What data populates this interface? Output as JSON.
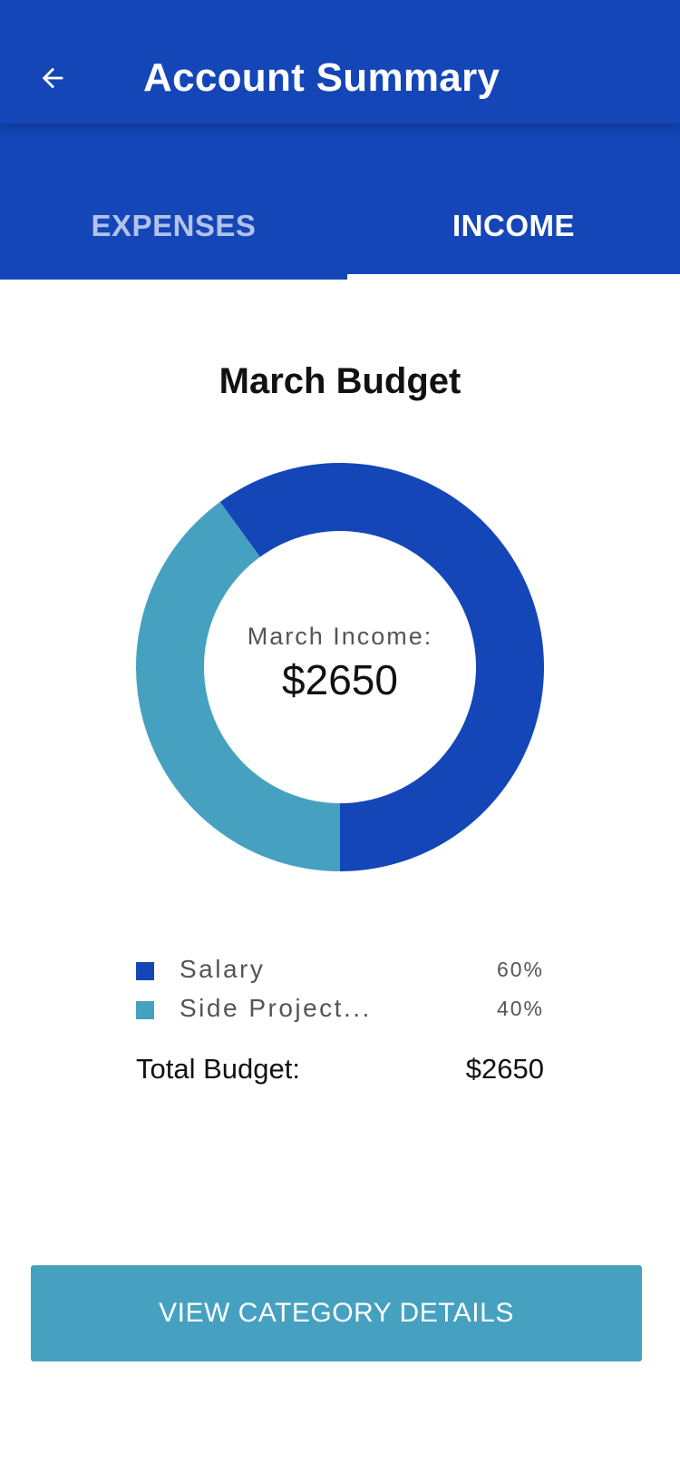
{
  "header": {
    "title": "Account Summary",
    "back_icon": "arrow-back-icon"
  },
  "tabs": [
    {
      "label": "EXPENSES",
      "selected": false
    },
    {
      "label": "INCOME",
      "selected": true
    }
  ],
  "colors": {
    "primary": "#1446b8",
    "secondary": "#46a1c1",
    "inactive_tab": "#b3c2ea"
  },
  "chart_data": {
    "type": "pie",
    "title": "March Budget",
    "center_label": "March Income:",
    "center_value": "$2650",
    "categories": [
      "Salary",
      "Side Project..."
    ],
    "values": [
      60,
      40
    ],
    "value_labels": [
      "60%",
      "40%"
    ],
    "colors": [
      "#1446b8",
      "#46a1c1"
    ],
    "legend_position": "bottom"
  },
  "summary": {
    "total_label": "Total Budget:",
    "total_value": "$2650"
  },
  "actions": {
    "details_label": "VIEW CATEGORY DETAILS"
  }
}
